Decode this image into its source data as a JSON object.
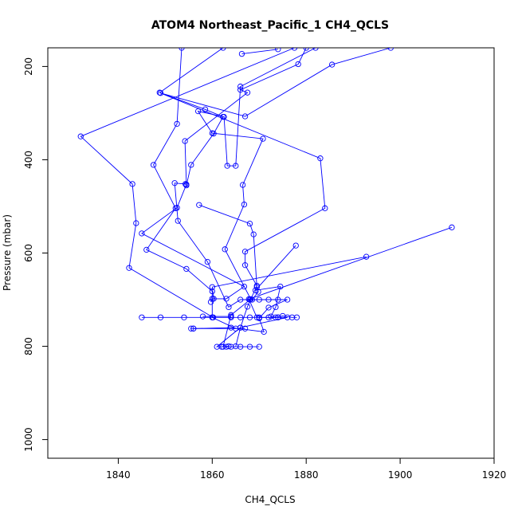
{
  "chart_data": {
    "type": "line",
    "title": "ATOM4 Northeast_Pacific_1 CH4_QCLS",
    "xlabel": "CH4_QCLS",
    "ylabel": "Pressure (mbar)",
    "xlim": [
      1825,
      1920
    ],
    "ylim": [
      1040,
      160
    ],
    "y_reversed": true,
    "x_ticks": [
      1840,
      1860,
      1880,
      1900,
      1920
    ],
    "y_ticks": [
      200,
      400,
      600,
      800,
      1000
    ],
    "grid": false,
    "legend": "none",
    "marker": "open-circle",
    "colors": {
      "series": "#0000ff",
      "axes": "#000000",
      "background": "#ffffff"
    },
    "series": [
      {
        "points": [
          [
            1853.5,
            160
          ],
          [
            1852.5,
            323
          ],
          [
            1847.5,
            411
          ],
          [
            1852.2,
            504
          ],
          [
            1846,
            593
          ],
          [
            1854.5,
            634
          ],
          [
            1860,
            682
          ],
          [
            1860,
            738
          ],
          [
            1864,
            738
          ],
          [
            1866,
            738
          ],
          [
            1868,
            738
          ],
          [
            1870,
            738
          ],
          [
            1872,
            738
          ],
          [
            1874,
            738
          ],
          [
            1876,
            738
          ],
          [
            1866,
            760
          ],
          [
            1861,
            801
          ],
          [
            1862,
            801
          ],
          [
            1863,
            801
          ],
          [
            1864,
            801
          ],
          [
            1866,
            801
          ],
          [
            1868,
            801
          ],
          [
            1870,
            801
          ]
        ]
      },
      {
        "points": [
          [
            1862.3,
            160
          ],
          [
            1848.8,
            256
          ],
          [
            1858.5,
            292
          ],
          [
            1862.3,
            308
          ],
          [
            1860.3,
            344
          ],
          [
            1855.5,
            411
          ],
          [
            1854.5,
            455
          ],
          [
            1854.3,
            452
          ],
          [
            1852,
            450
          ],
          [
            1852.7,
            531
          ],
          [
            1859,
            619
          ],
          [
            1863.5,
            716
          ],
          [
            1866,
            700
          ],
          [
            1868,
            700
          ],
          [
            1870,
            700
          ],
          [
            1872,
            700
          ],
          [
            1874,
            700
          ],
          [
            1876,
            700
          ],
          [
            1872,
            717
          ],
          [
            1870,
            740
          ],
          [
            1871,
            769
          ],
          [
            1864,
            760
          ],
          [
            1856,
            762
          ]
        ]
      },
      {
        "points": [
          [
            1877.5,
            160
          ],
          [
            1832,
            350
          ],
          [
            1843,
            452
          ],
          [
            1843.8,
            536
          ],
          [
            1842.3,
            632
          ],
          [
            1860.2,
            738
          ],
          [
            1849,
            738
          ],
          [
            1845,
            738
          ],
          [
            1854,
            738
          ],
          [
            1860,
            738
          ],
          [
            1865,
            762
          ],
          [
            1867,
            762
          ],
          [
            1856,
            762
          ],
          [
            1855.5,
            762
          ]
        ]
      },
      {
        "points": [
          [
            1882,
            160
          ],
          [
            1866,
            243
          ],
          [
            1865,
            413
          ],
          [
            1863.2,
            413
          ],
          [
            1862.5,
            308
          ],
          [
            1857,
            296
          ],
          [
            1860,
            343
          ],
          [
            1870.8,
            355
          ],
          [
            1866.5,
            454
          ],
          [
            1866.8,
            496
          ],
          [
            1862.7,
            592
          ],
          [
            1868.2,
            699
          ],
          [
            1864,
            733
          ],
          [
            1862.3,
            801
          ],
          [
            1863.5,
            800
          ]
        ]
      },
      {
        "points": [
          [
            1898,
            160
          ],
          [
            1885.5,
            196
          ],
          [
            1867,
            307
          ],
          [
            1849,
            257
          ],
          [
            1883,
            397
          ],
          [
            1884,
            504
          ],
          [
            1867,
            597
          ],
          [
            1867,
            626
          ],
          [
            1869.5,
            670
          ],
          [
            1867.5,
            715
          ],
          [
            1866,
            760
          ],
          [
            1865,
            800
          ]
        ]
      },
      {
        "points": [
          [
            1880,
            160
          ],
          [
            1878.3,
            195
          ],
          [
            1866,
            250
          ],
          [
            1867.5,
            256
          ],
          [
            1854.2,
            360
          ],
          [
            1854.5,
            453
          ],
          [
            1852.5,
            503
          ],
          [
            1845,
            558
          ],
          [
            1866.8,
            672
          ],
          [
            1863,
            698
          ],
          [
            1860,
            698
          ]
        ]
      },
      {
        "points": [
          [
            1911,
            545
          ],
          [
            1867.8,
            699
          ],
          [
            1869.5,
            738
          ],
          [
            1873.5,
            738
          ],
          [
            1875,
            735
          ],
          [
            1877,
            738
          ],
          [
            1878,
            738
          ]
        ]
      },
      {
        "points": [
          [
            1892.8,
            608
          ],
          [
            1860,
            673
          ],
          [
            1860.3,
            698
          ],
          [
            1859.7,
            705
          ]
        ]
      },
      {
        "points": [
          [
            1857.2,
            497
          ],
          [
            1868,
            537
          ],
          [
            1868.8,
            560
          ],
          [
            1869.5,
            673
          ],
          [
            1869.8,
            683
          ],
          [
            1868.5,
            700
          ]
        ]
      },
      {
        "points": [
          [
            1877.8,
            584
          ],
          [
            1869.2,
            680
          ],
          [
            1874.5,
            672
          ],
          [
            1873.5,
            716
          ],
          [
            1872.5,
            736
          ],
          [
            1874,
            738
          ]
        ]
      },
      {
        "points": [
          [
            1866.3,
            173
          ],
          [
            1874,
            163
          ]
        ]
      },
      {
        "points": [
          [
            1858,
            736
          ],
          [
            1864,
            736
          ]
        ]
      }
    ]
  }
}
